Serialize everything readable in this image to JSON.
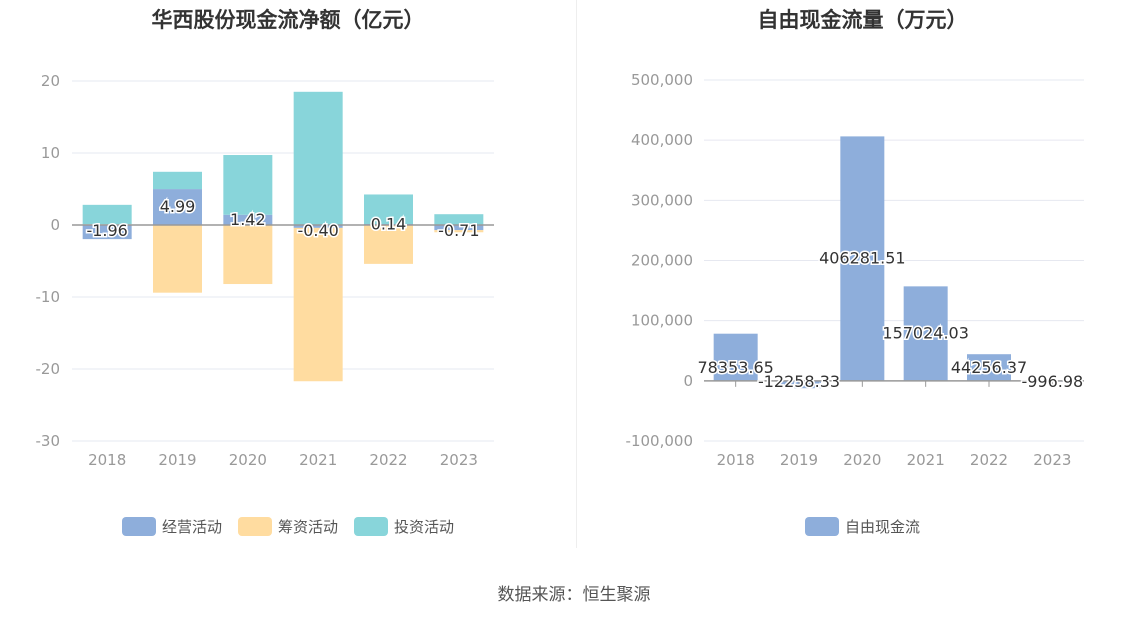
{
  "source_label": "数据来源：恒生聚源",
  "colors": {
    "operating": "#8eaedb",
    "financing": "#ffdca0",
    "investing": "#88d5da",
    "free_cash_flow": "#8eaedb",
    "grid": "#e6e8f0",
    "axis": "#999999",
    "tick_text": "#999999"
  },
  "chart_data": [
    {
      "type": "bar",
      "stacked": true,
      "title": "华西股份现金流净额（亿元）",
      "categories": [
        "2018",
        "2019",
        "2020",
        "2021",
        "2022",
        "2023"
      ],
      "ylim": [
        -30,
        20
      ],
      "yticks": [
        20,
        10,
        0,
        -10,
        -20,
        -30
      ],
      "grid": true,
      "legend_position": "bottom",
      "series": [
        {
          "name": "经营活动",
          "key": "operating",
          "values": [
            -1.96,
            4.99,
            1.42,
            -0.4,
            0.14,
            -0.71
          ],
          "labels": [
            "-1.96",
            "4.99",
            "1.42",
            "-0.40",
            "0.14",
            "-0.71"
          ]
        },
        {
          "name": "筹资活动",
          "key": "financing",
          "values": [
            0.1,
            -9.4,
            -8.2,
            -21.3,
            -5.4,
            -0.3
          ]
        },
        {
          "name": "投资活动",
          "key": "investing",
          "values": [
            2.7,
            2.4,
            8.3,
            18.5,
            4.1,
            1.5
          ]
        }
      ]
    },
    {
      "type": "bar",
      "title": "自由现金流量（万元）",
      "categories": [
        "2018",
        "2019",
        "2020",
        "2021",
        "2022",
        "2023"
      ],
      "ylim": [
        -100000,
        500000
      ],
      "yticks": [
        "500,000",
        "400,000",
        "300,000",
        "200,000",
        "100,000",
        "0",
        "-100,000"
      ],
      "ytick_values": [
        500000,
        400000,
        300000,
        200000,
        100000,
        0,
        -100000
      ],
      "grid": true,
      "legend_position": "bottom",
      "series": [
        {
          "name": "自由现金流",
          "key": "free_cash_flow",
          "values": [
            78353.65,
            -12258.33,
            406281.51,
            157024.03,
            44256.37,
            -996.98
          ],
          "labels": [
            "78353.65",
            "-12258.33",
            "406281.51",
            "157024.03",
            "44256.37",
            "-996.98"
          ]
        }
      ]
    }
  ]
}
